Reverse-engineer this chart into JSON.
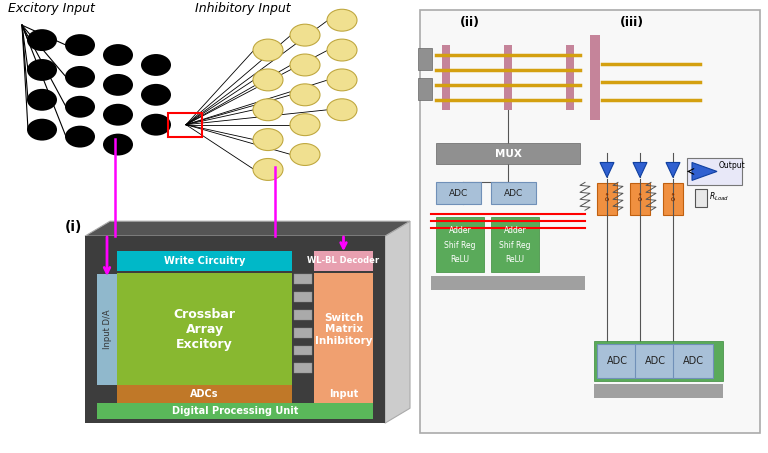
{
  "bg_color": "#ffffff",
  "excitory_label": "Excitory Input",
  "inhibitory_label": "Inhibitory Input",
  "panel_i_label": "(i)",
  "panel_ii_label": "(ii)",
  "panel_iii_label": "(iii)",
  "chip_bg": "#3d3d3d",
  "write_circuitry_color": "#00b8c8",
  "crossbar_color": "#88b830",
  "adcs_color": "#c07828",
  "digital_proc_color": "#5ab85a",
  "wlbl_decoder_color": "#e8a0b0",
  "switch_matrix_color": "#f0a070",
  "input_da_color": "#90b8cc",
  "input_bottom_color": "#f0a070",
  "connector_color": "#aaaaaa",
  "panel_border": "#aaaaaa",
  "panel_bg": "#f8f8f8",
  "mux_color": "#909090",
  "adc_color_ii": "#a8c0d8",
  "proc_color": "#5aaa5a",
  "gray_bar_color": "#a0a0a0",
  "grid_h_color": "#d4a010",
  "grid_v_color_ii": "#b06080",
  "grid_v_color_iii": "#b06080",
  "adc_large_color": "#5aaa7a",
  "component_color": "#e08030",
  "output_box_color": "#e8e8f8",
  "resistor_color": "#e8e8e8"
}
